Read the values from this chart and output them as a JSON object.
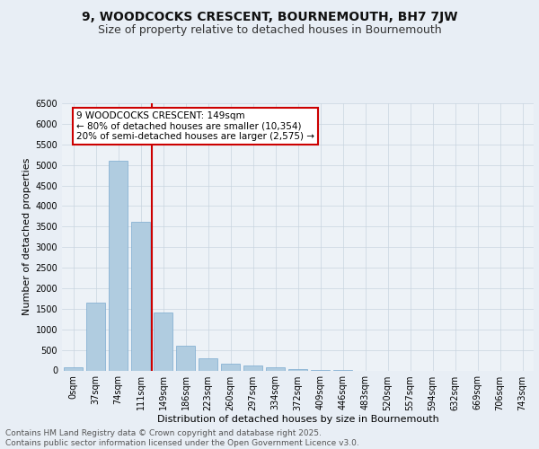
{
  "title": "9, WOODCOCKS CRESCENT, BOURNEMOUTH, BH7 7JW",
  "subtitle": "Size of property relative to detached houses in Bournemouth",
  "xlabel": "Distribution of detached houses by size in Bournemouth",
  "ylabel": "Number of detached properties",
  "bar_labels": [
    "0sqm",
    "37sqm",
    "74sqm",
    "111sqm",
    "149sqm",
    "186sqm",
    "223sqm",
    "260sqm",
    "297sqm",
    "334sqm",
    "372sqm",
    "409sqm",
    "446sqm",
    "483sqm",
    "520sqm",
    "557sqm",
    "594sqm",
    "632sqm",
    "669sqm",
    "706sqm",
    "743sqm"
  ],
  "bar_values": [
    75,
    1650,
    5100,
    3620,
    1420,
    600,
    305,
    160,
    120,
    80,
    40,
    15,
    5,
    0,
    0,
    0,
    0,
    0,
    0,
    0,
    0
  ],
  "bar_color": "#b0cce0",
  "bar_edge_color": "#7aaacf",
  "vline_color": "#cc0000",
  "annotation_text": "9 WOODCOCKS CRESCENT: 149sqm\n← 80% of detached houses are smaller (10,354)\n20% of semi-detached houses are larger (2,575) →",
  "annotation_box_color": "#cc0000",
  "annotation_fill": "#ffffff",
  "ylim": [
    0,
    6500
  ],
  "yticks": [
    0,
    500,
    1000,
    1500,
    2000,
    2500,
    3000,
    3500,
    4000,
    4500,
    5000,
    5500,
    6000,
    6500
  ],
  "bg_color": "#e8eef5",
  "plot_bg_color": "#e8eef5",
  "inner_bg_color": "#edf2f7",
  "footer_text": "Contains HM Land Registry data © Crown copyright and database right 2025.\nContains public sector information licensed under the Open Government Licence v3.0.",
  "title_fontsize": 10,
  "subtitle_fontsize": 9,
  "axis_label_fontsize": 8,
  "tick_fontsize": 7,
  "annotation_fontsize": 7.5,
  "footer_fontsize": 6.5
}
